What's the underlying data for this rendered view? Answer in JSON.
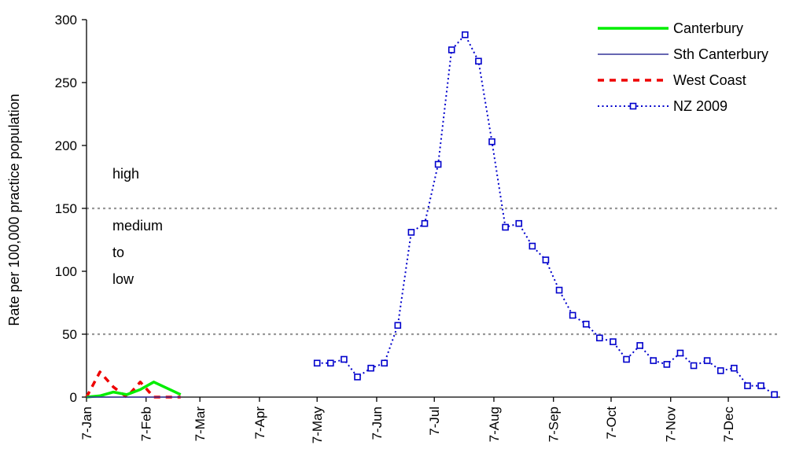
{
  "chart_data": {
    "type": "line",
    "ylabel": "Rate per 100,000 practice population",
    "xlabel": "",
    "ylim": [
      0,
      300
    ],
    "yticks": [
      0,
      50,
      100,
      150,
      200,
      250,
      300
    ],
    "x_axis_start": "2009-01-07",
    "x_axis_end": "2010-01-03",
    "xticks": [
      {
        "label": "7-Jan",
        "date": "2009-01-07"
      },
      {
        "label": "7-Feb",
        "date": "2009-02-07"
      },
      {
        "label": "7-Mar",
        "date": "2009-03-07"
      },
      {
        "label": "7-Apr",
        "date": "2009-04-07"
      },
      {
        "label": "7-May",
        "date": "2009-05-07"
      },
      {
        "label": "7-Jun",
        "date": "2009-06-07"
      },
      {
        "label": "7-Jul",
        "date": "2009-07-07"
      },
      {
        "label": "7-Aug",
        "date": "2009-08-07"
      },
      {
        "label": "7-Sep",
        "date": "2009-09-07"
      },
      {
        "label": "7-Oct",
        "date": "2009-10-07"
      },
      {
        "label": "7-Nov",
        "date": "2009-11-07"
      },
      {
        "label": "7-Dec",
        "date": "2009-12-07"
      }
    ],
    "grid": false,
    "thresholds": [
      150,
      50
    ],
    "zone_labels": [
      "high",
      "medium",
      "to",
      "low"
    ],
    "legend_position": "top-right",
    "series": [
      {
        "name": "Canterbury",
        "color": "#00ee00",
        "style": "solid-thick",
        "points": [
          {
            "x": "2009-01-07",
            "y": 0
          },
          {
            "x": "2009-01-14",
            "y": 1
          },
          {
            "x": "2009-01-21",
            "y": 4
          },
          {
            "x": "2009-01-28",
            "y": 2
          },
          {
            "x": "2009-02-04",
            "y": 6
          },
          {
            "x": "2009-02-11",
            "y": 12
          },
          {
            "x": "2009-02-18",
            "y": 7
          },
          {
            "x": "2009-02-25",
            "y": 2
          }
        ]
      },
      {
        "name": "Sth Canterbury",
        "color": "#333399",
        "style": "solid-thin",
        "points": [
          {
            "x": "2009-01-07",
            "y": 0
          },
          {
            "x": "2009-01-14",
            "y": 0
          },
          {
            "x": "2009-01-21",
            "y": 0
          },
          {
            "x": "2009-01-28",
            "y": 0
          },
          {
            "x": "2009-02-04",
            "y": 0
          },
          {
            "x": "2009-02-11",
            "y": 0
          },
          {
            "x": "2009-02-18",
            "y": 0
          },
          {
            "x": "2009-02-25",
            "y": 0
          }
        ]
      },
      {
        "name": "West Coast",
        "color": "#ee0000",
        "style": "dashed",
        "points": [
          {
            "x": "2009-01-07",
            "y": 0
          },
          {
            "x": "2009-01-14",
            "y": 20
          },
          {
            "x": "2009-01-21",
            "y": 8
          },
          {
            "x": "2009-01-28",
            "y": 0
          },
          {
            "x": "2009-02-04",
            "y": 12
          },
          {
            "x": "2009-02-11",
            "y": 0
          },
          {
            "x": "2009-02-18",
            "y": 0
          },
          {
            "x": "2009-02-25",
            "y": 0
          }
        ]
      },
      {
        "name": "NZ 2009",
        "color": "#0000cc",
        "style": "dotted-markers",
        "points": [
          {
            "x": "2009-05-07",
            "y": 27
          },
          {
            "x": "2009-05-14",
            "y": 27
          },
          {
            "x": "2009-05-21",
            "y": 30
          },
          {
            "x": "2009-05-28",
            "y": 16
          },
          {
            "x": "2009-06-04",
            "y": 23
          },
          {
            "x": "2009-06-11",
            "y": 27
          },
          {
            "x": "2009-06-18",
            "y": 57
          },
          {
            "x": "2009-06-25",
            "y": 131
          },
          {
            "x": "2009-07-02",
            "y": 138
          },
          {
            "x": "2009-07-09",
            "y": 185
          },
          {
            "x": "2009-07-16",
            "y": 276
          },
          {
            "x": "2009-07-23",
            "y": 288
          },
          {
            "x": "2009-07-30",
            "y": 267
          },
          {
            "x": "2009-08-06",
            "y": 203
          },
          {
            "x": "2009-08-13",
            "y": 135
          },
          {
            "x": "2009-08-20",
            "y": 138
          },
          {
            "x": "2009-08-27",
            "y": 120
          },
          {
            "x": "2009-09-03",
            "y": 109
          },
          {
            "x": "2009-09-10",
            "y": 85
          },
          {
            "x": "2009-09-17",
            "y": 65
          },
          {
            "x": "2009-09-24",
            "y": 58
          },
          {
            "x": "2009-10-01",
            "y": 47
          },
          {
            "x": "2009-10-08",
            "y": 44
          },
          {
            "x": "2009-10-15",
            "y": 30
          },
          {
            "x": "2009-10-22",
            "y": 41
          },
          {
            "x": "2009-10-29",
            "y": 29
          },
          {
            "x": "2009-11-05",
            "y": 26
          },
          {
            "x": "2009-11-12",
            "y": 35
          },
          {
            "x": "2009-11-19",
            "y": 25
          },
          {
            "x": "2009-11-26",
            "y": 29
          },
          {
            "x": "2009-12-03",
            "y": 21
          },
          {
            "x": "2009-12-10",
            "y": 23
          },
          {
            "x": "2009-12-17",
            "y": 9
          },
          {
            "x": "2009-12-24",
            "y": 9
          },
          {
            "x": "2009-12-31",
            "y": 2
          }
        ]
      }
    ]
  }
}
